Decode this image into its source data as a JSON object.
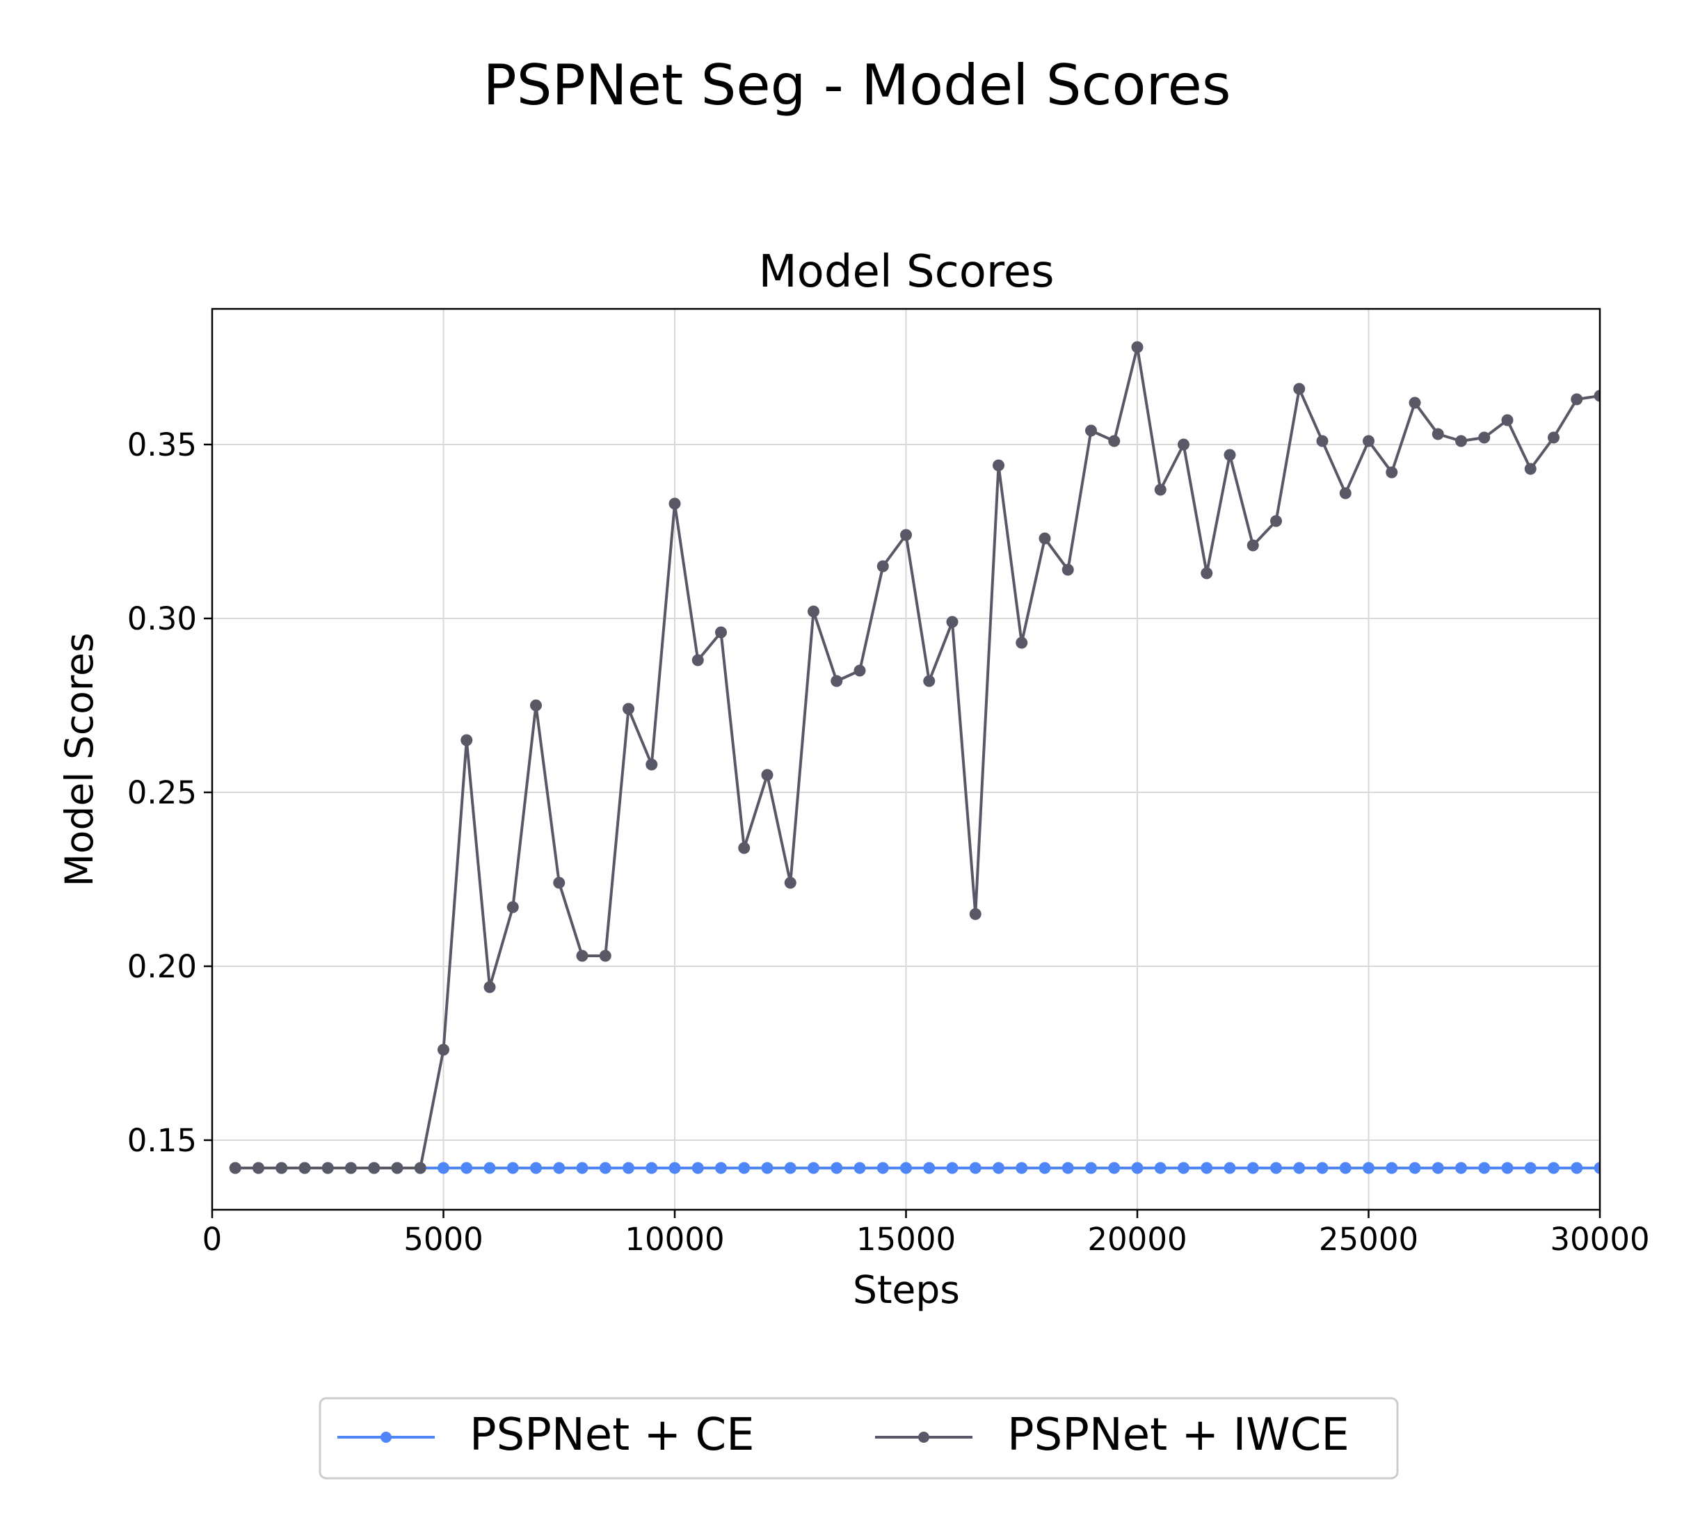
{
  "figure": {
    "suptitle": "PSPNet Seg - Model Scores"
  },
  "chart_data": {
    "type": "line",
    "title": "Model Scores",
    "xlabel": "Steps",
    "ylabel": "Model Scores",
    "xlim": [
      0,
      30000
    ],
    "ylim": [
      0.13,
      0.389
    ],
    "xticks": [
      0,
      5000,
      10000,
      15000,
      20000,
      25000,
      30000
    ],
    "xtick_labels": [
      "0",
      "5000",
      "10000",
      "15000",
      "20000",
      "25000",
      "30000"
    ],
    "yticks": [
      0.15,
      0.2,
      0.25,
      0.3,
      0.35
    ],
    "ytick_labels": [
      "0.15",
      "0.20",
      "0.25",
      "0.30",
      "0.35"
    ],
    "grid": true,
    "legend_position": "bottom-center, below plot",
    "x": [
      500,
      1000,
      1500,
      2000,
      2500,
      3000,
      3500,
      4000,
      4500,
      5000,
      5500,
      6000,
      6500,
      7000,
      7500,
      8000,
      8500,
      9000,
      9500,
      10000,
      10500,
      11000,
      11500,
      12000,
      12500,
      13000,
      13500,
      14000,
      14500,
      15000,
      15500,
      16000,
      16500,
      17000,
      17500,
      18000,
      18500,
      19000,
      19500,
      20000,
      20500,
      21000,
      21500,
      22000,
      22500,
      23000,
      23500,
      24000,
      24500,
      25000,
      25500,
      26000,
      26500,
      27000,
      27500,
      28000,
      28500,
      29000,
      29500,
      30000
    ],
    "series": [
      {
        "name": "PSPNet + CE",
        "color": "#4f86f7",
        "values": [
          0.142,
          0.142,
          0.142,
          0.142,
          0.142,
          0.142,
          0.142,
          0.142,
          0.142,
          0.142,
          0.142,
          0.142,
          0.142,
          0.142,
          0.142,
          0.142,
          0.142,
          0.142,
          0.142,
          0.142,
          0.142,
          0.142,
          0.142,
          0.142,
          0.142,
          0.142,
          0.142,
          0.142,
          0.142,
          0.142,
          0.142,
          0.142,
          0.142,
          0.142,
          0.142,
          0.142,
          0.142,
          0.142,
          0.142,
          0.142,
          0.142,
          0.142,
          0.142,
          0.142,
          0.142,
          0.142,
          0.142,
          0.142,
          0.142,
          0.142,
          0.142,
          0.142,
          0.142,
          0.142,
          0.142,
          0.142,
          0.142,
          0.142,
          0.142,
          0.142
        ]
      },
      {
        "name": "PSPNet + IWCE",
        "color": "#595867",
        "values": [
          0.142,
          0.142,
          0.142,
          0.142,
          0.142,
          0.142,
          0.142,
          0.142,
          0.142,
          0.176,
          0.265,
          0.194,
          0.217,
          0.275,
          0.224,
          0.203,
          0.203,
          0.274,
          0.258,
          0.333,
          0.288,
          0.296,
          0.234,
          0.255,
          0.224,
          0.302,
          0.282,
          0.285,
          0.315,
          0.324,
          0.282,
          0.299,
          0.215,
          0.344,
          0.293,
          0.323,
          0.314,
          0.354,
          0.351,
          0.378,
          0.337,
          0.35,
          0.313,
          0.347,
          0.321,
          0.328,
          0.366,
          0.351,
          0.336,
          0.351,
          0.342,
          0.362,
          0.353,
          0.351,
          0.352,
          0.357,
          0.343,
          0.352,
          0.363,
          0.364
        ]
      }
    ]
  }
}
